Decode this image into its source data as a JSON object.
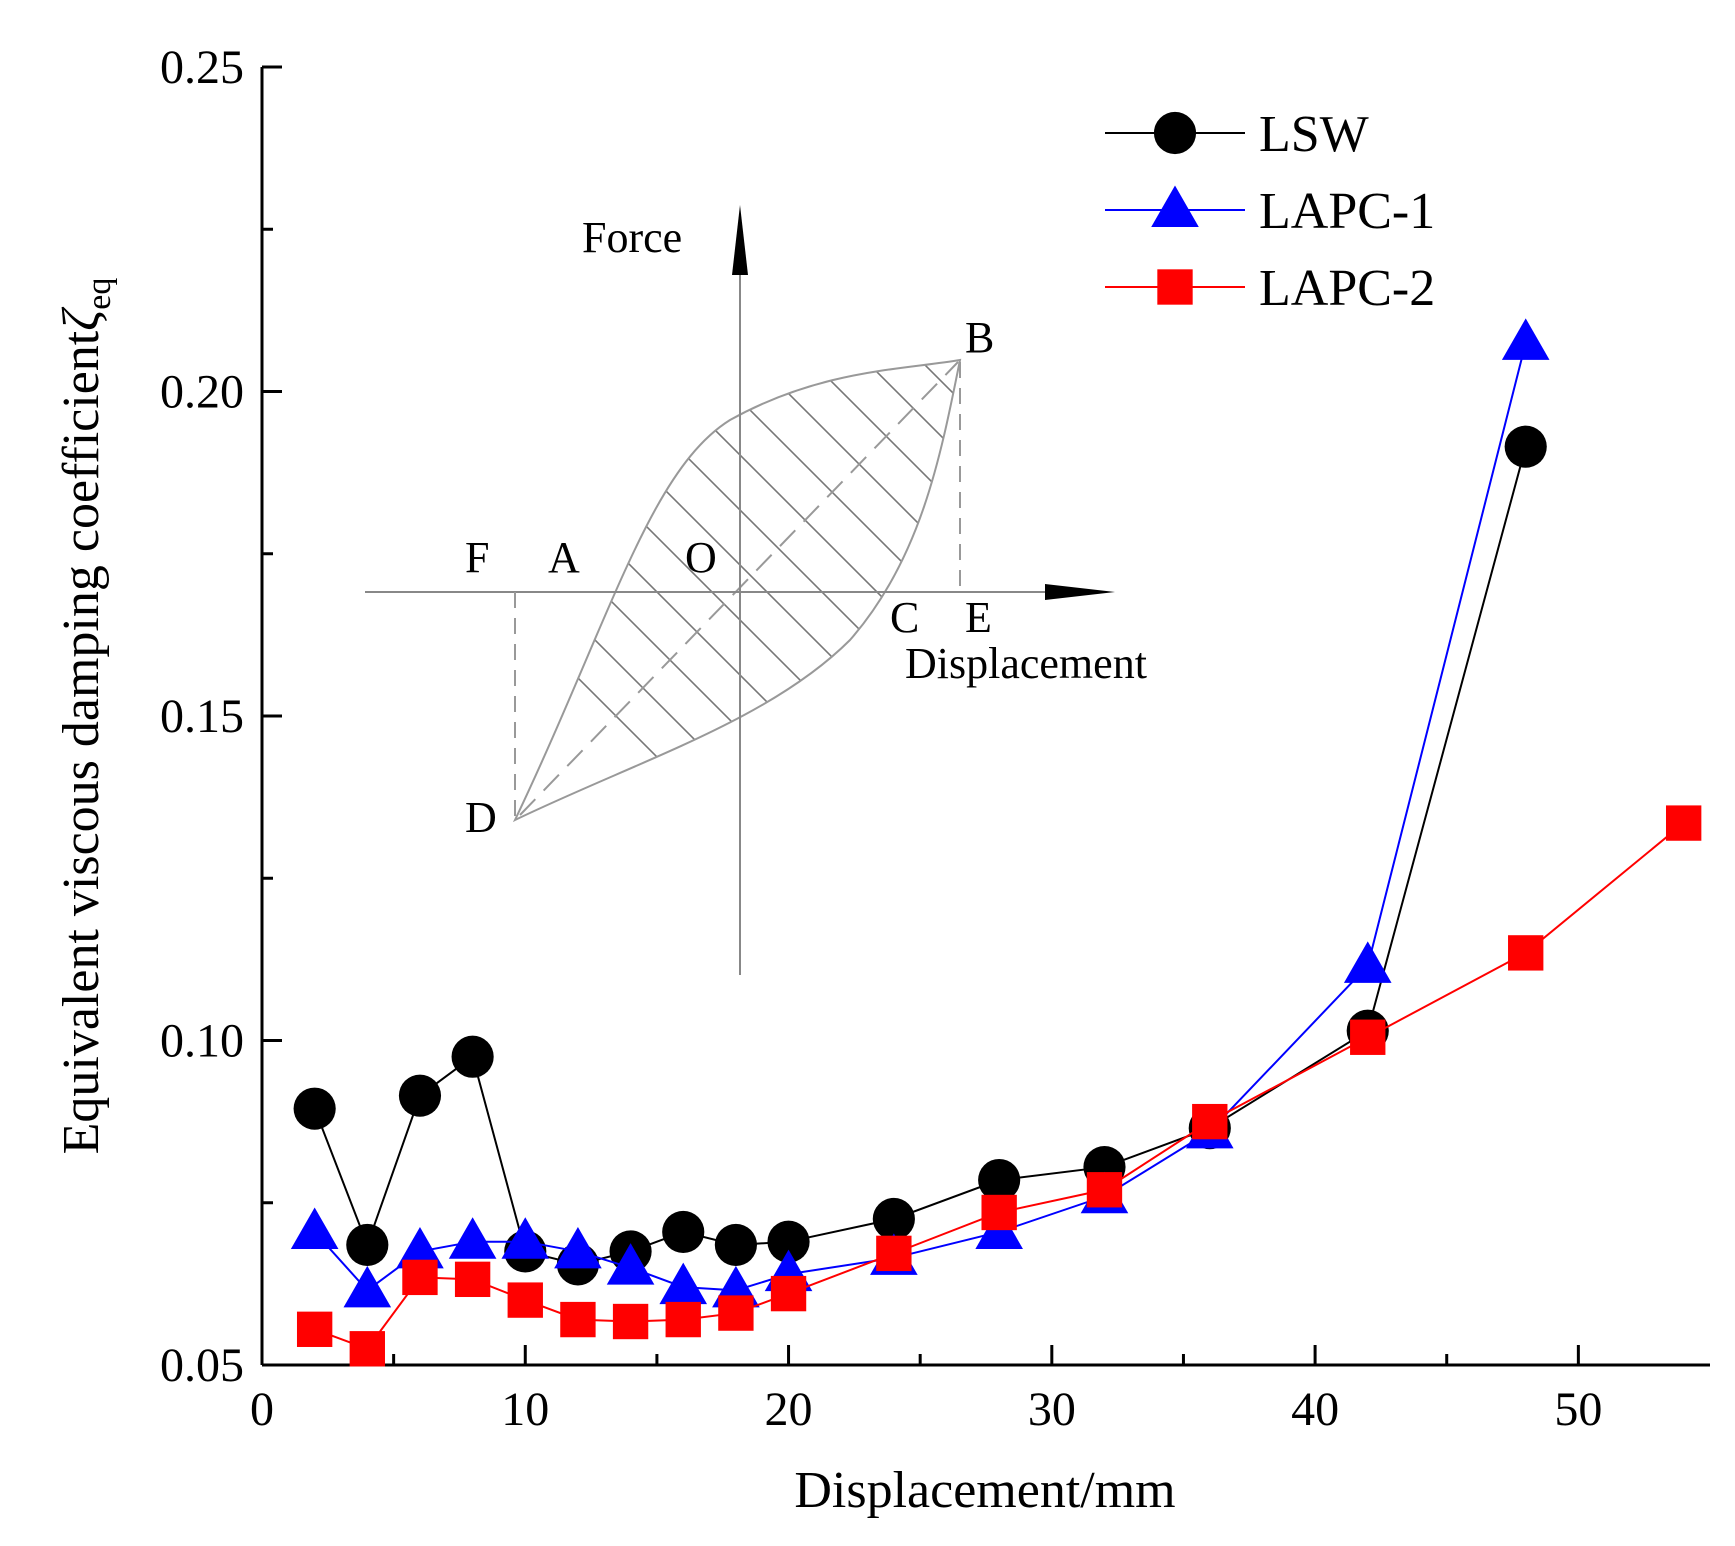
{
  "chart_data": {
    "type": "line",
    "title": "",
    "xlabel": "Displacement/mm",
    "ylabel": "Equivalent viscous damping coefficient",
    "ylabel_symbol": "ζ",
    "ylabel_subscript": "eq",
    "xlim": [
      0,
      55
    ],
    "ylim": [
      0.05,
      0.25
    ],
    "xticks": [
      0,
      10,
      20,
      30,
      40,
      50
    ],
    "xtick_labels": [
      "0",
      "10",
      "20",
      "30",
      "40",
      "50"
    ],
    "yticks": [
      0.05,
      0.1,
      0.15,
      0.2,
      0.25
    ],
    "ytick_labels": [
      "0.05",
      "0.10",
      "0.15",
      "0.20",
      "0.25"
    ],
    "grid": false,
    "legend_position": "top-right",
    "series": [
      {
        "name": "LSW",
        "color": "#000000",
        "marker": "circle",
        "x": [
          2,
          4,
          6,
          8,
          10,
          12,
          14,
          16,
          18,
          20,
          24,
          28,
          32,
          36,
          42,
          48
        ],
        "y": [
          0.0895,
          0.0685,
          0.0915,
          0.0975,
          0.0675,
          0.0655,
          0.0675,
          0.0705,
          0.0685,
          0.069,
          0.0725,
          0.0785,
          0.0805,
          0.0865,
          0.1015,
          0.1915
        ]
      },
      {
        "name": "LAPC-1",
        "color": "#0000ff",
        "marker": "triangle",
        "x": [
          2,
          4,
          6,
          8,
          10,
          12,
          14,
          16,
          18,
          20,
          24,
          28,
          32,
          36,
          42,
          48
        ],
        "y": [
          0.0705,
          0.0615,
          0.0675,
          0.069,
          0.069,
          0.0675,
          0.065,
          0.062,
          0.0615,
          0.064,
          0.0665,
          0.0705,
          0.076,
          0.086,
          0.1115,
          0.2075
        ]
      },
      {
        "name": "LAPC-2",
        "color": "#ff0000",
        "marker": "square",
        "x": [
          2,
          4,
          6,
          8,
          10,
          12,
          14,
          16,
          18,
          20,
          24,
          28,
          32,
          36,
          42,
          48,
          54
        ],
        "y": [
          0.0555,
          0.0525,
          0.0635,
          0.0632,
          0.06,
          0.057,
          0.0567,
          0.057,
          0.058,
          0.061,
          0.0672,
          0.0735,
          0.077,
          0.0875,
          0.1005,
          0.1135,
          0.1335
        ]
      }
    ],
    "inset": {
      "description_labels": {
        "force": "Force",
        "displacement": "Displacement",
        "points": [
          "F",
          "A",
          "O",
          "C",
          "E",
          "B",
          "D"
        ]
      }
    }
  }
}
